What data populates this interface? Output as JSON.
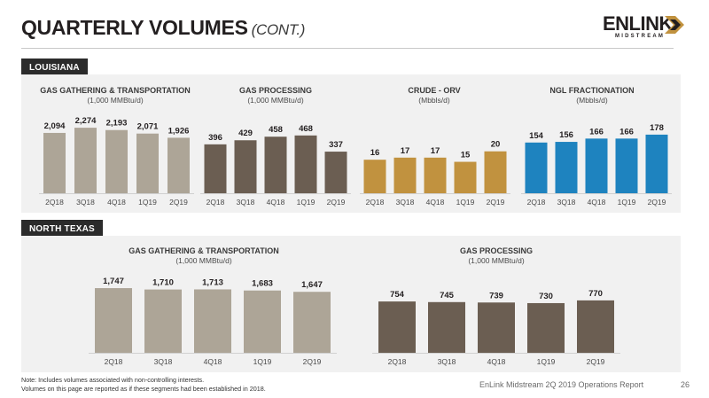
{
  "page": {
    "title": "QUARTERLY VOLUMES",
    "title_suffix": "(CONT.)",
    "logo_text": "ENLINK",
    "logo_subtext": "MIDSTREAM",
    "footnote_line1": "Note: Includes volumes associated with non-controlling interests.",
    "footnote_line2": "Volumes on this page are reported as if these segments had been established in 2018.",
    "report_label": "EnLink Midstream 2Q 2019 Operations Report",
    "page_number": "26"
  },
  "sections": {
    "louisiana": "LOUISIANA",
    "north_texas": "NORTH TEXAS"
  },
  "colors": {
    "tan": "#ada597",
    "dark_brown": "#6b5e52",
    "orange": "#c1923f",
    "blue": "#1e83bf",
    "panel": "#f1f1f1",
    "section_tag": "#2b2b2b"
  },
  "chart_data": [
    {
      "id": "la_gg",
      "type": "bar",
      "title": "GAS GATHERING & TRANSPORTATION",
      "unit": "(1,000 MMBtu/d)",
      "categories": [
        "2Q18",
        "3Q18",
        "4Q18",
        "1Q19",
        "2Q19"
      ],
      "values": [
        2094,
        2274,
        2193,
        2071,
        1926
      ],
      "labels": [
        "2,094",
        "2,274",
        "2,193",
        "2,071",
        "1,926"
      ],
      "color": "#ada597"
    },
    {
      "id": "la_gp",
      "type": "bar",
      "title": "GAS PROCESSING",
      "unit": "(1,000 MMBtu/d)",
      "categories": [
        "2Q18",
        "3Q18",
        "4Q18",
        "1Q19",
        "2Q19"
      ],
      "values": [
        396,
        429,
        458,
        468,
        337
      ],
      "labels": [
        "396",
        "429",
        "458",
        "468",
        "337"
      ],
      "color": "#6b5e52"
    },
    {
      "id": "la_crude",
      "type": "bar",
      "title": "CRUDE - ORV",
      "unit": "(Mbbls/d)",
      "categories": [
        "2Q18",
        "3Q18",
        "4Q18",
        "1Q19",
        "2Q19"
      ],
      "values": [
        16,
        17,
        17,
        15,
        20
      ],
      "labels": [
        "16",
        "17",
        "17",
        "15",
        "20"
      ],
      "color": "#c1923f"
    },
    {
      "id": "la_ngl",
      "type": "bar",
      "title": "NGL FRACTIONATION",
      "unit": "(Mbbls/d)",
      "categories": [
        "2Q18",
        "3Q18",
        "4Q18",
        "1Q19",
        "2Q19"
      ],
      "values": [
        154,
        156,
        166,
        166,
        178
      ],
      "labels": [
        "154",
        "156",
        "166",
        "166",
        "178"
      ],
      "color": "#1e83bf"
    },
    {
      "id": "nt_gg",
      "type": "bar",
      "title": "GAS GATHERING & TRANSPORTATION",
      "unit": "(1,000 MMBtu/d)",
      "categories": [
        "2Q18",
        "3Q18",
        "4Q18",
        "1Q19",
        "2Q19"
      ],
      "values": [
        1747,
        1710,
        1713,
        1683,
        1647
      ],
      "labels": [
        "1,747",
        "1,710",
        "1,713",
        "1,683",
        "1,647"
      ],
      "color": "#ada597"
    },
    {
      "id": "nt_gp",
      "type": "bar",
      "title": "GAS PROCESSING",
      "unit": "(1,000 MMBtu/d)",
      "categories": [
        "2Q18",
        "3Q18",
        "4Q18",
        "1Q19",
        "2Q19"
      ],
      "values": [
        754,
        745,
        739,
        730,
        770
      ],
      "labels": [
        "754",
        "745",
        "739",
        "730",
        "770"
      ],
      "color": "#6b5e52"
    }
  ]
}
